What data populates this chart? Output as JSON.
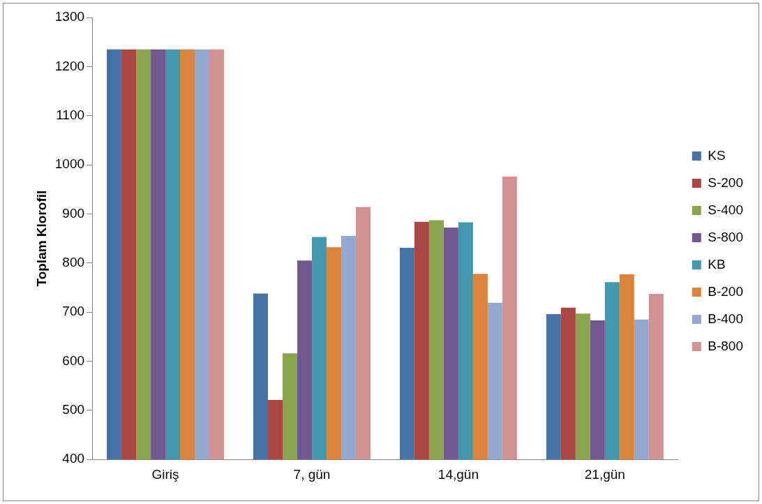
{
  "chart_data": {
    "type": "bar",
    "ylabel": "Toplam Klorofil",
    "categories": [
      "Giriş",
      "7, gün",
      "14,gün",
      "21,gün"
    ],
    "series": [
      {
        "name": "KS",
        "color": "#4572a7",
        "values": [
          1235,
          738,
          831,
          696
        ]
      },
      {
        "name": "S-200",
        "color": "#aa4643",
        "values": [
          1235,
          521,
          884,
          709
        ]
      },
      {
        "name": "S-400",
        "color": "#89a54e",
        "values": [
          1235,
          616,
          887,
          697
        ]
      },
      {
        "name": "S-800",
        "color": "#71588f",
        "values": [
          1235,
          805,
          872,
          683
        ]
      },
      {
        "name": "KB",
        "color": "#4198af",
        "values": [
          1235,
          853,
          883,
          761
        ]
      },
      {
        "name": "B-200",
        "color": "#db843d",
        "values": [
          1235,
          832,
          778,
          777
        ]
      },
      {
        "name": "B-400",
        "color": "#93a9cf",
        "values": [
          1235,
          855,
          719,
          685
        ]
      },
      {
        "name": "B-800",
        "color": "#d19392",
        "values": [
          1235,
          914,
          976,
          737
        ]
      }
    ],
    "ylim": [
      400,
      1300
    ],
    "yticks": [
      400,
      500,
      600,
      700,
      800,
      900,
      1000,
      1100,
      1200,
      1300
    ],
    "grid": false,
    "legend": "right"
  }
}
